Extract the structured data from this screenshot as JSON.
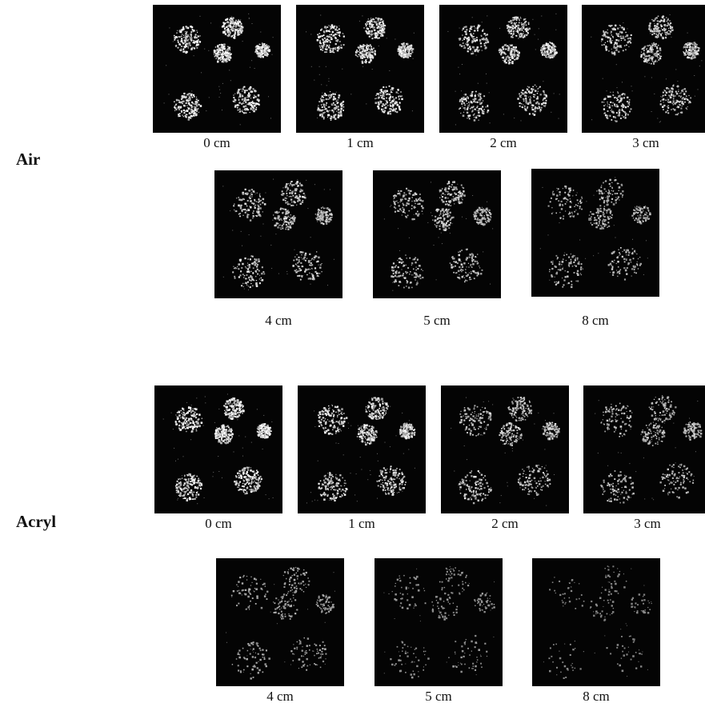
{
  "groups": [
    {
      "label": "Air",
      "panels": [
        {
          "caption": "0 cm",
          "intensity": 1.0
        },
        {
          "caption": "1 cm",
          "intensity": 0.9
        },
        {
          "caption": "2 cm",
          "intensity": 0.82
        },
        {
          "caption": "3 cm",
          "intensity": 0.75
        },
        {
          "caption": "4 cm",
          "intensity": 0.68
        },
        {
          "caption": "5 cm",
          "intensity": 0.62
        },
        {
          "caption": "8 cm",
          "intensity": 0.52
        }
      ]
    },
    {
      "label": "Acryl",
      "panels": [
        {
          "caption": "0 cm",
          "intensity": 1.0
        },
        {
          "caption": "1 cm",
          "intensity": 0.85
        },
        {
          "caption": "2 cm",
          "intensity": 0.65
        },
        {
          "caption": "3 cm",
          "intensity": 0.55
        },
        {
          "caption": "4 cm",
          "intensity": 0.35
        },
        {
          "caption": "5 cm",
          "intensity": 0.22
        },
        {
          "caption": "8 cm",
          "intensity": 0.12
        }
      ]
    }
  ]
}
